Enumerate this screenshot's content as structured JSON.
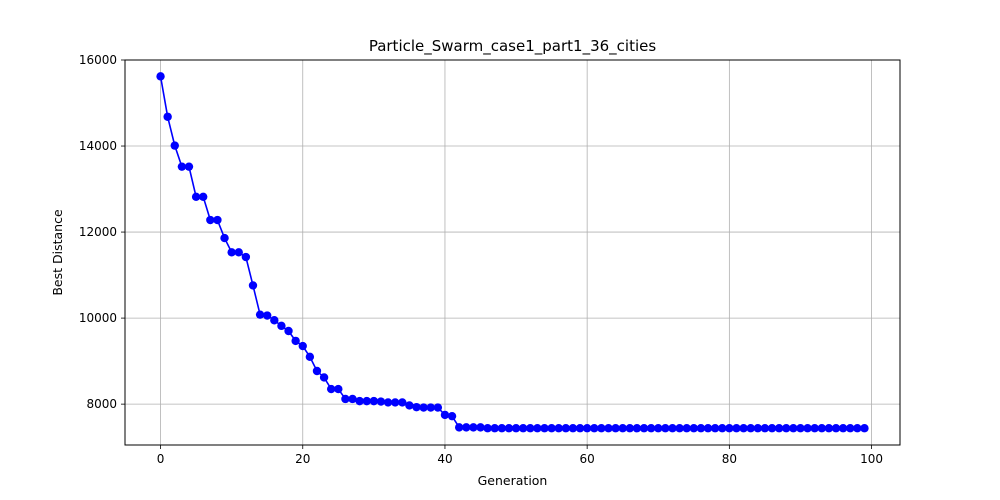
{
  "chart_data": {
    "type": "line",
    "title": "Particle_Swarm_case1_part1_36_cities",
    "xlabel": "Generation",
    "ylabel": "Best Distance",
    "xlim": [
      -5,
      104
    ],
    "ylim": [
      7050,
      16000
    ],
    "xticks": [
      0,
      20,
      40,
      60,
      80,
      100
    ],
    "yticks": [
      8000,
      10000,
      12000,
      14000,
      16000
    ],
    "grid": true,
    "colors": {
      "series": "#0000ff",
      "grid": "#b0b0b0",
      "axes": "#000000"
    },
    "series": [
      {
        "marker": "circle",
        "x": [
          0,
          1,
          2,
          3,
          4,
          5,
          6,
          7,
          8,
          9,
          10,
          11,
          12,
          13,
          14,
          15,
          16,
          17,
          18,
          19,
          20,
          21,
          22,
          23,
          24,
          25,
          26,
          27,
          28,
          29,
          30,
          31,
          32,
          33,
          34,
          35,
          36,
          37,
          38,
          39,
          40,
          41,
          42,
          43,
          44,
          45,
          46,
          47,
          48,
          49,
          50,
          51,
          52,
          53,
          54,
          55,
          56,
          57,
          58,
          59,
          60,
          61,
          62,
          63,
          64,
          65,
          66,
          67,
          68,
          69,
          70,
          71,
          72,
          73,
          74,
          75,
          76,
          77,
          78,
          79,
          80,
          81,
          82,
          83,
          84,
          85,
          86,
          87,
          88,
          89,
          90,
          91,
          92,
          93,
          94,
          95,
          96,
          97,
          98,
          99
        ],
        "values": [
          15620,
          14680,
          14010,
          13520,
          13520,
          12820,
          12820,
          12280,
          12280,
          11860,
          11530,
          11530,
          11420,
          10760,
          10080,
          10060,
          9950,
          9820,
          9700,
          9470,
          9350,
          9100,
          8770,
          8620,
          8350,
          8350,
          8120,
          8120,
          8070,
          8070,
          8070,
          8060,
          8040,
          8040,
          8040,
          7970,
          7930,
          7920,
          7920,
          7920,
          7750,
          7720,
          7460,
          7460,
          7460,
          7460,
          7440,
          7440,
          7440,
          7440,
          7440,
          7440,
          7440,
          7440,
          7440,
          7440,
          7440,
          7440,
          7440,
          7440,
          7440,
          7440,
          7440,
          7440,
          7440,
          7440,
          7440,
          7440,
          7440,
          7440,
          7440,
          7440,
          7440,
          7440,
          7440,
          7440,
          7440,
          7440,
          7440,
          7440,
          7440,
          7440,
          7440,
          7440,
          7440,
          7440,
          7440,
          7440,
          7440,
          7440,
          7440,
          7440,
          7440,
          7440,
          7440,
          7440,
          7440,
          7440,
          7440,
          7440
        ]
      }
    ]
  }
}
